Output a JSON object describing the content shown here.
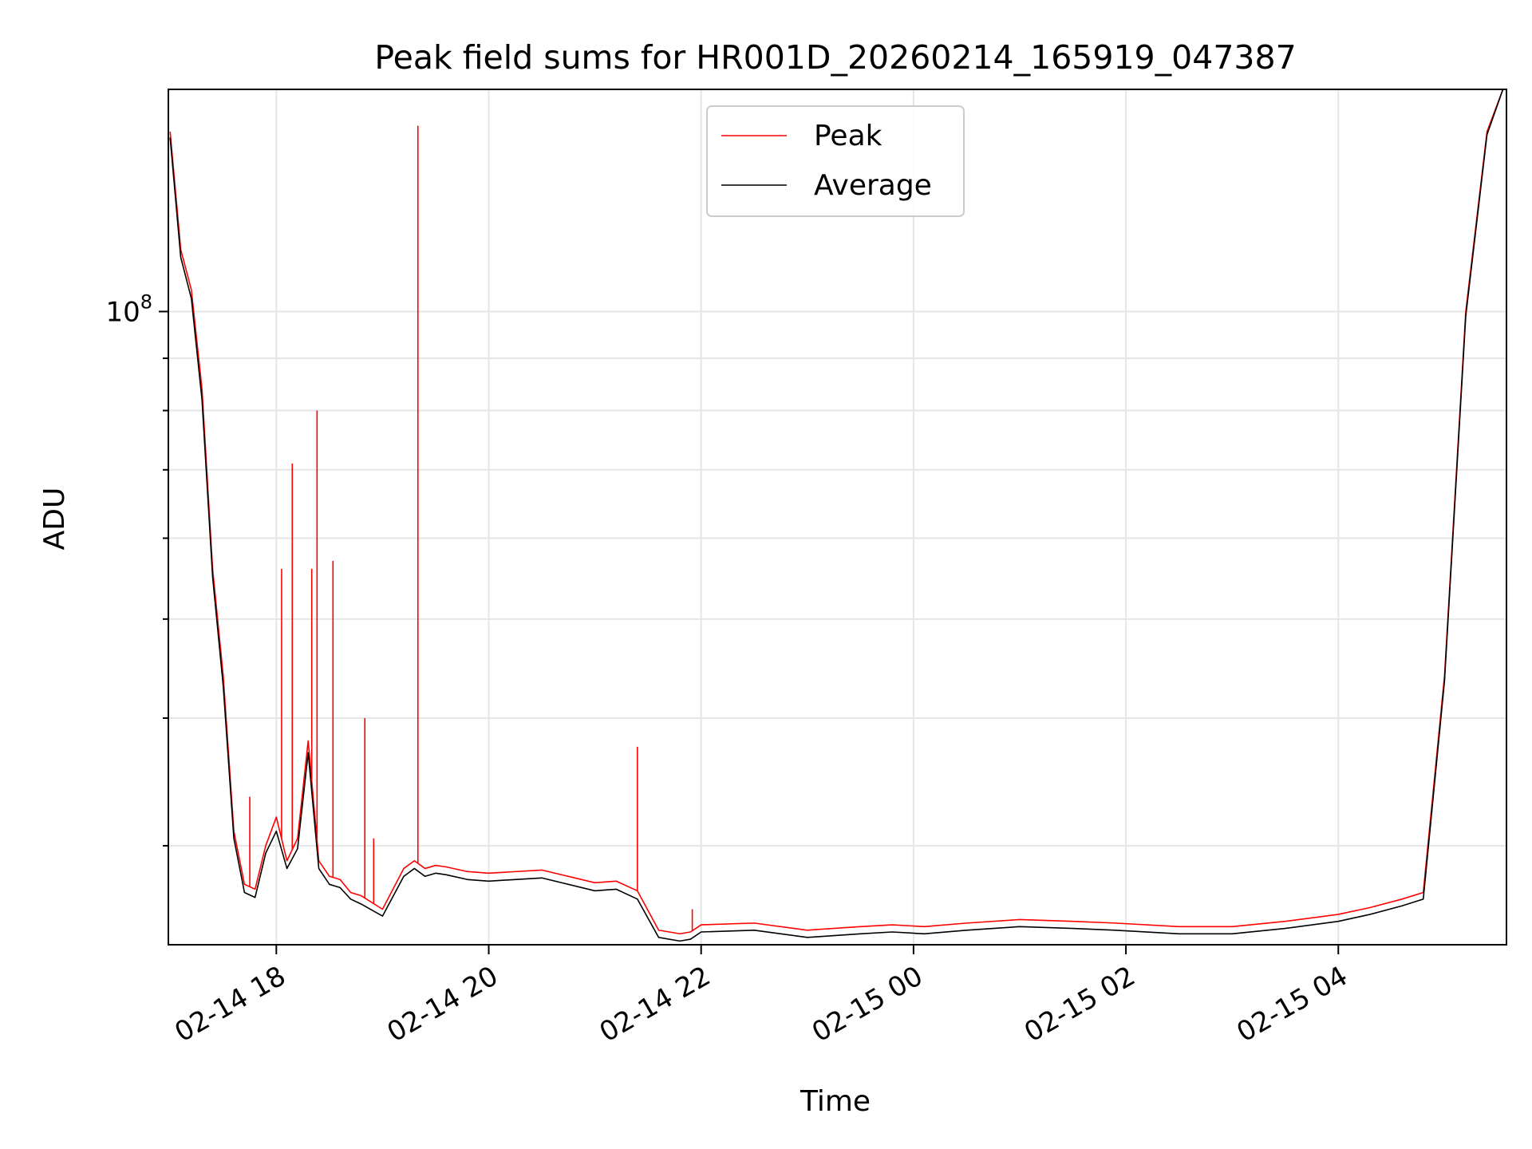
{
  "chart_data": {
    "type": "line",
    "title": "Peak field sums for HR001D_20260214_165919_047387",
    "xlabel": "Time",
    "ylabel": "ADU",
    "yscale": "log",
    "xlim": [
      "2026-02-14 16:59",
      "2026-02-15 05:35"
    ],
    "ylim": [
      24000000,
      165000000
    ],
    "grid": true,
    "legend_position": "top-center",
    "x_ticks": [
      "2026-02-14 18:00",
      "2026-02-14 20:00",
      "2026-02-14 22:00",
      "2026-02-15 00:00",
      "2026-02-15 02:00",
      "2026-02-15 04:00"
    ],
    "x_tick_labels": [
      "02-14 18",
      "02-14 20",
      "02-14 22",
      "02-15 00",
      "02-15 02",
      "02-15 04"
    ],
    "y_tick_labels": [
      {
        "value": 100000000,
        "base": "10",
        "exp": "8"
      }
    ],
    "colors": {
      "peak": "#ff0000",
      "average": "#000000"
    },
    "series": [
      {
        "name": "Peak",
        "color": "#ff0000",
        "x": [
          "2026-02-14 17:00",
          "2026-02-14 17:06",
          "2026-02-14 17:12",
          "2026-02-14 17:18",
          "2026-02-14 17:24",
          "2026-02-14 17:30",
          "2026-02-14 17:36",
          "2026-02-14 17:42",
          "2026-02-14 17:48",
          "2026-02-14 17:54",
          "2026-02-14 18:00",
          "2026-02-14 18:06",
          "2026-02-14 18:12",
          "2026-02-14 18:18",
          "2026-02-14 18:24",
          "2026-02-14 18:30",
          "2026-02-14 18:36",
          "2026-02-14 18:42",
          "2026-02-14 18:48",
          "2026-02-14 19:00",
          "2026-02-14 19:12",
          "2026-02-14 19:18",
          "2026-02-14 19:24",
          "2026-02-14 19:30",
          "2026-02-14 19:36",
          "2026-02-14 19:48",
          "2026-02-14 20:00",
          "2026-02-14 20:30",
          "2026-02-14 21:00",
          "2026-02-14 21:12",
          "2026-02-14 21:24",
          "2026-02-14 21:36",
          "2026-02-14 21:48",
          "2026-02-14 21:54",
          "2026-02-14 22:00",
          "2026-02-14 22:30",
          "2026-02-14 23:00",
          "2026-02-14 23:30",
          "2026-02-14 23:48",
          "2026-02-15 00:06",
          "2026-02-15 00:30",
          "2026-02-15 01:00",
          "2026-02-15 01:30",
          "2026-02-15 01:54",
          "2026-02-15 02:30",
          "2026-02-15 03:00",
          "2026-02-15 03:30",
          "2026-02-15 04:00",
          "2026-02-15 04:18",
          "2026-02-15 04:36",
          "2026-02-15 04:48",
          "2026-02-15 05:00",
          "2026-02-15 05:12",
          "2026-02-15 05:24",
          "2026-02-15 05:33"
        ],
        "y": [
          150000000,
          115000000,
          105000000,
          84000000,
          56000000,
          44000000,
          31000000,
          27500000,
          27200000,
          30000000,
          32000000,
          29000000,
          30500000,
          38000000,
          29000000,
          28000000,
          27800000,
          27000000,
          26800000,
          26000000,
          28500000,
          29000000,
          28500000,
          28700000,
          28600000,
          28300000,
          28200000,
          28400000,
          27600000,
          27700000,
          27100000,
          24800000,
          24600000,
          24700000,
          25100000,
          25200000,
          24800000,
          25000000,
          25100000,
          25000000,
          25200000,
          25400000,
          25300000,
          25200000,
          25000000,
          25000000,
          25300000,
          25700000,
          26100000,
          26600000,
          27000000,
          44000000,
          100000000,
          150000000,
          165000000
        ]
      },
      {
        "name": "Average",
        "color": "#000000",
        "x": [
          "2026-02-14 17:00",
          "2026-02-14 17:06",
          "2026-02-14 17:12",
          "2026-02-14 17:18",
          "2026-02-14 17:24",
          "2026-02-14 17:30",
          "2026-02-14 17:36",
          "2026-02-14 17:42",
          "2026-02-14 17:48",
          "2026-02-14 17:54",
          "2026-02-14 18:00",
          "2026-02-14 18:06",
          "2026-02-14 18:12",
          "2026-02-14 18:18",
          "2026-02-14 18:24",
          "2026-02-14 18:30",
          "2026-02-14 18:36",
          "2026-02-14 18:42",
          "2026-02-14 18:48",
          "2026-02-14 19:00",
          "2026-02-14 19:12",
          "2026-02-14 19:18",
          "2026-02-14 19:24",
          "2026-02-14 19:30",
          "2026-02-14 19:36",
          "2026-02-14 19:48",
          "2026-02-14 20:00",
          "2026-02-14 20:30",
          "2026-02-14 21:00",
          "2026-02-14 21:12",
          "2026-02-14 21:24",
          "2026-02-14 21:36",
          "2026-02-14 21:48",
          "2026-02-14 21:54",
          "2026-02-14 22:00",
          "2026-02-14 22:30",
          "2026-02-14 23:00",
          "2026-02-14 23:30",
          "2026-02-14 23:48",
          "2026-02-15 00:06",
          "2026-02-15 00:30",
          "2026-02-15 01:00",
          "2026-02-15 01:30",
          "2026-02-15 01:54",
          "2026-02-15 02:30",
          "2026-02-15 03:00",
          "2026-02-15 03:30",
          "2026-02-15 04:00",
          "2026-02-15 04:18",
          "2026-02-15 04:36",
          "2026-02-15 04:48",
          "2026-02-15 05:00",
          "2026-02-15 05:12",
          "2026-02-15 05:24",
          "2026-02-15 05:33"
        ],
        "y": [
          148000000,
          113000000,
          103000000,
          82000000,
          55000000,
          43000000,
          30500000,
          27000000,
          26700000,
          29500000,
          31000000,
          28500000,
          29800000,
          37000000,
          28500000,
          27500000,
          27300000,
          26600000,
          26300000,
          25600000,
          28000000,
          28500000,
          28000000,
          28200000,
          28100000,
          27800000,
          27700000,
          27900000,
          27100000,
          27200000,
          26600000,
          24400000,
          24200000,
          24300000,
          24700000,
          24800000,
          24400000,
          24600000,
          24700000,
          24600000,
          24800000,
          25000000,
          24900000,
          24800000,
          24600000,
          24600000,
          24900000,
          25300000,
          25700000,
          26200000,
          26600000,
          43500000,
          99000000,
          149000000,
          165000000
        ]
      }
    ],
    "spikes": [
      {
        "x": "2026-02-14 17:45",
        "y": 33500000
      },
      {
        "x": "2026-02-14 18:03",
        "y": 56000000
      },
      {
        "x": "2026-02-14 18:09",
        "y": 71000000
      },
      {
        "x": "2026-02-14 18:20",
        "y": 56000000
      },
      {
        "x": "2026-02-14 18:23",
        "y": 80000000
      },
      {
        "x": "2026-02-14 18:32",
        "y": 57000000
      },
      {
        "x": "2026-02-14 18:50",
        "y": 40000000
      },
      {
        "x": "2026-02-14 18:55",
        "y": 30500000
      },
      {
        "x": "2026-02-14 19:20",
        "y": 152000000
      },
      {
        "x": "2026-02-14 21:24",
        "y": 37500000
      },
      {
        "x": "2026-02-14 21:55",
        "y": 26000000
      }
    ]
  }
}
